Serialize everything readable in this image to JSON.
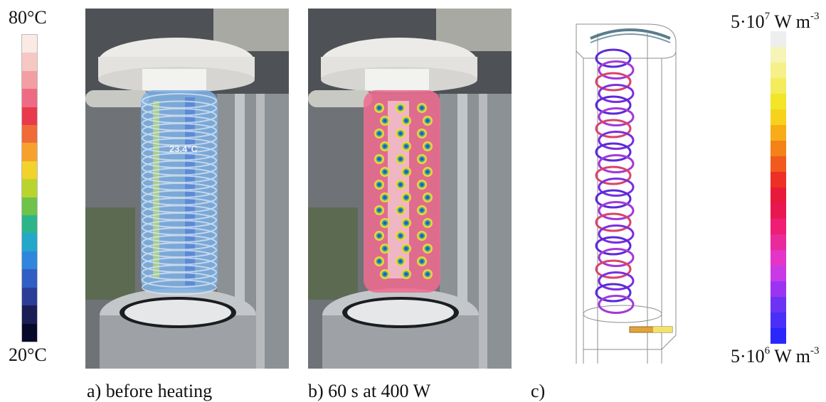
{
  "scale_left": {
    "top_label": "80°C",
    "bottom_label": "20°C"
  },
  "panels": {
    "a": {
      "caption": "a) before heating",
      "temperature_readout": "23.4°C"
    },
    "b": {
      "caption": "b) 60 s at 400 W"
    },
    "c": {
      "caption": "c)"
    }
  },
  "scale_right": {
    "top": {
      "base": "5·10",
      "exp": "7",
      "unit": " W m",
      "unit_exp": "-3"
    },
    "bottom": {
      "base": "5·10",
      "exp": "6",
      "unit": " W m",
      "unit_exp": "-3"
    }
  },
  "colors": {
    "thermal_bar": [
      "#fbe9e4",
      "#f7c7c3",
      "#f29ea3",
      "#ee6b84",
      "#e83a4c",
      "#f06b37",
      "#f7a12c",
      "#f2d22c",
      "#b9d52d",
      "#6fc24a",
      "#2db58a",
      "#24a7c9",
      "#2f86dc",
      "#2f5fc4",
      "#2c3d97",
      "#1b1d55",
      "#08092a"
    ],
    "power_bar": [
      "#eeeeee",
      "#f6f4b6",
      "#f5f08a",
      "#f3ec5c",
      "#f3e527",
      "#f7d21c",
      "#f7ac18",
      "#f48218",
      "#f15a1c",
      "#ee2f26",
      "#e8193b",
      "#e8174f",
      "#ef1d74",
      "#e92a9a",
      "#e534c7",
      "#c83ae6",
      "#9b34f2",
      "#6d33f5",
      "#4a2ff8",
      "#2927fb"
    ]
  }
}
